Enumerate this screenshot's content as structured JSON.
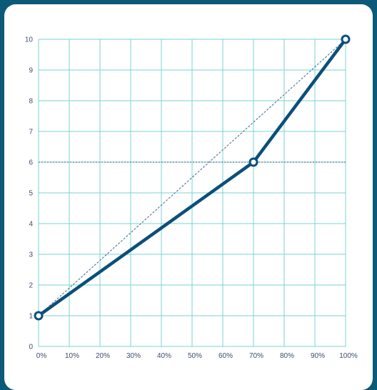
{
  "chart_data": {
    "type": "line",
    "title": "",
    "xlabel": "",
    "ylabel": "",
    "xlim": [
      0,
      100
    ],
    "ylim": [
      0,
      10
    ],
    "x_ticks": [
      "0%",
      "10%",
      "20%",
      "30%",
      "40%",
      "50%",
      "60%",
      "70%",
      "80%",
      "90%",
      "100%"
    ],
    "y_ticks": [
      "0",
      "1",
      "2",
      "3",
      "4",
      "5",
      "6",
      "7",
      "8",
      "9",
      "10"
    ],
    "grid": true,
    "series": [
      {
        "style": "solid",
        "color": "#0b4f7a",
        "x": [
          0,
          70,
          100
        ],
        "y": [
          1,
          6,
          10
        ]
      },
      {
        "style": "dashed",
        "color": "#5a7f9c",
        "x": [
          0,
          100
        ],
        "y": [
          1,
          10
        ]
      }
    ],
    "reference_lines": [
      {
        "axis": "y",
        "value": 6,
        "style": "dotted",
        "color": "#5a7f9c"
      }
    ],
    "colors": {
      "grid": "#79d3d1",
      "background": "#0b5a78",
      "card": "#ffffff"
    }
  }
}
